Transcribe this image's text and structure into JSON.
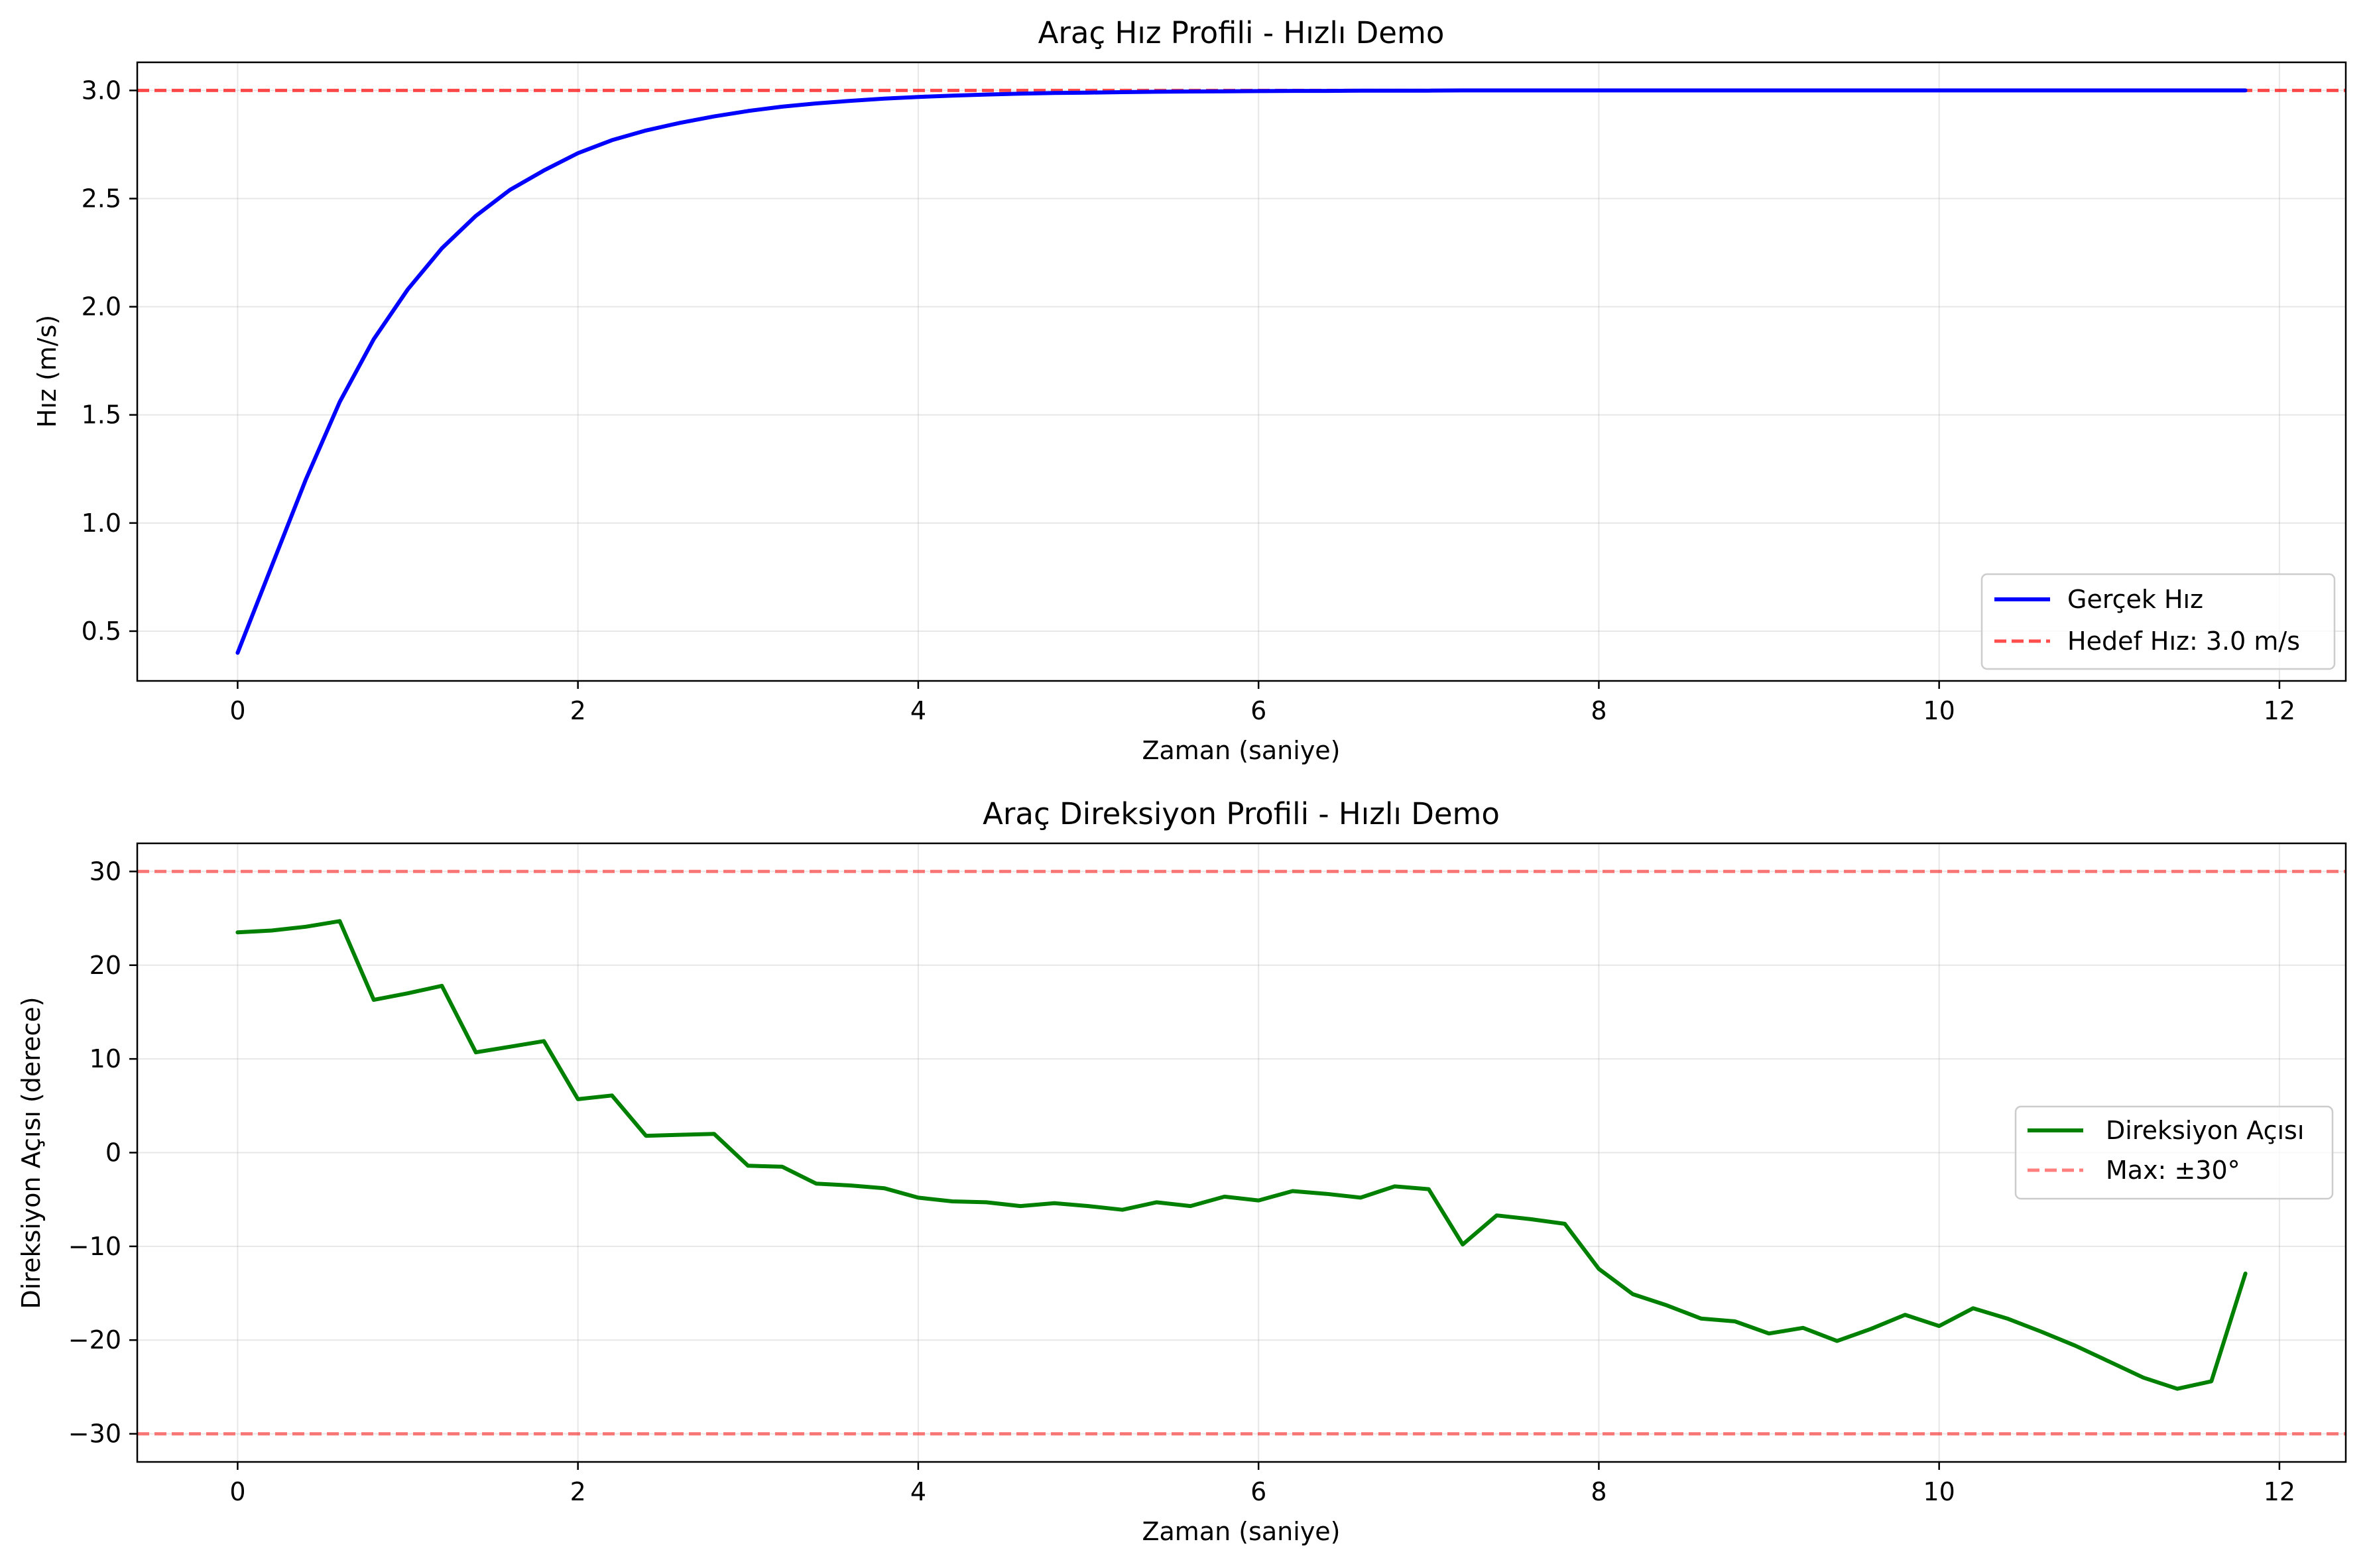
{
  "chart_data": [
    {
      "type": "line",
      "title": "Araç Hız Profili - Hızlı Demo",
      "xlabel": "Zaman (saniye)",
      "ylabel": "Hız (m/s)",
      "xlim": [
        -0.59,
        12.39
      ],
      "ylim": [
        0.27,
        3.13
      ],
      "x_ticks": [
        0,
        2,
        4,
        6,
        8,
        10,
        12
      ],
      "y_ticks": [
        0.5,
        1.0,
        1.5,
        2.0,
        2.5,
        3.0
      ],
      "x_tick_labels": [
        "0",
        "2",
        "4",
        "6",
        "8",
        "10",
        "12"
      ],
      "y_tick_labels": [
        "0.5",
        "1.0",
        "1.5",
        "2.0",
        "2.5",
        "3.0"
      ],
      "grid": true,
      "legend_position": "lower-right",
      "series": [
        {
          "name": "Gerçek Hız",
          "color": "#0000ff",
          "style": "solid",
          "x": [
            0,
            0.2,
            0.4,
            0.6,
            0.8,
            1.0,
            1.2,
            1.4,
            1.6,
            1.8,
            2.0,
            2.2,
            2.4,
            2.6,
            2.8,
            3.0,
            3.2,
            3.4,
            3.6,
            3.8,
            4.0,
            4.2,
            4.4,
            4.6,
            4.8,
            5.0,
            5.2,
            5.4,
            5.6,
            5.8,
            6.0,
            6.2,
            6.4,
            6.6,
            6.8,
            7.0,
            7.2,
            7.4,
            7.6,
            7.8,
            8.0,
            8.2,
            8.4,
            8.6,
            8.8,
            9.0,
            9.2,
            9.4,
            9.6,
            9.8,
            10.0,
            10.2,
            10.4,
            10.6,
            10.8,
            11.0,
            11.2,
            11.4,
            11.6,
            11.8
          ],
          "y": [
            0.4,
            0.8,
            1.2,
            1.56,
            1.85,
            2.08,
            2.27,
            2.42,
            2.54,
            2.63,
            2.71,
            2.77,
            2.815,
            2.85,
            2.88,
            2.905,
            2.925,
            2.94,
            2.952,
            2.962,
            2.97,
            2.976,
            2.981,
            2.985,
            2.988,
            2.99,
            2.992,
            2.994,
            2.995,
            2.996,
            2.997,
            2.998,
            2.998,
            2.999,
            2.999,
            2.999,
            3.0,
            3.0,
            3.0,
            3.0,
            3.0,
            3.0,
            3.0,
            3.0,
            3.0,
            3.0,
            3.0,
            3.0,
            3.0,
            3.0,
            3.0,
            3.0,
            3.0,
            3.0,
            3.0,
            3.0,
            3.0,
            3.0,
            3.0,
            3.0
          ]
        },
        {
          "name": "Hedef Hız: 3.0 m/s",
          "color": "#ff0000",
          "style": "dashed",
          "hline": 3.0
        }
      ]
    },
    {
      "type": "line",
      "title": "Araç Direksiyon Profili - Hızlı Demo",
      "xlabel": "Zaman (saniye)",
      "ylabel": "Direksiyon Açısı (derece)",
      "xlim": [
        -0.59,
        12.39
      ],
      "ylim": [
        -33,
        33
      ],
      "x_ticks": [
        0,
        2,
        4,
        6,
        8,
        10,
        12
      ],
      "y_ticks": [
        -30,
        -20,
        -10,
        0,
        10,
        20,
        30
      ],
      "x_tick_labels": [
        "0",
        "2",
        "4",
        "6",
        "8",
        "10",
        "12"
      ],
      "y_tick_labels": [
        "−30",
        "−20",
        "−10",
        "0",
        "10",
        "20",
        "30"
      ],
      "grid": true,
      "legend_position": "center-right",
      "series": [
        {
          "name": "Direksiyon Açısı",
          "color": "#008000",
          "style": "solid",
          "x": [
            0,
            0.2,
            0.4,
            0.6,
            0.8,
            1.0,
            1.2,
            1.4,
            1.6,
            1.8,
            2.0,
            2.2,
            2.4,
            2.6,
            2.8,
            3.0,
            3.2,
            3.4,
            3.6,
            3.8,
            4.0,
            4.2,
            4.4,
            4.6,
            4.8,
            5.0,
            5.2,
            5.4,
            5.6,
            5.8,
            6.0,
            6.2,
            6.4,
            6.6,
            6.8,
            7.0,
            7.2,
            7.4,
            7.6,
            7.8,
            8.0,
            8.2,
            8.4,
            8.6,
            8.8,
            9.0,
            9.2,
            9.4,
            9.6,
            9.8,
            10.0,
            10.2,
            10.4,
            10.6,
            10.8,
            11.0,
            11.2,
            11.4,
            11.6,
            11.8
          ],
          "y": [
            23.5,
            23.7,
            24.1,
            24.7,
            16.3,
            17.0,
            17.8,
            10.7,
            11.3,
            11.9,
            5.7,
            6.1,
            1.8,
            1.9,
            2.0,
            -1.4,
            -1.5,
            -3.3,
            -3.5,
            -3.8,
            -4.8,
            -5.2,
            -5.3,
            -5.7,
            -5.4,
            -5.7,
            -6.1,
            -5.3,
            -5.7,
            -4.7,
            -5.1,
            -4.1,
            -4.4,
            -4.8,
            -3.6,
            -3.9,
            -9.8,
            -6.7,
            -7.1,
            -7.6,
            -12.4,
            -15.1,
            -16.3,
            -17.7,
            -18.0,
            -19.3,
            -18.7,
            -20.1,
            -18.8,
            -17.3,
            -18.5,
            -16.6,
            -17.7,
            -19.1,
            -20.6,
            -22.3,
            -24.0,
            -25.2,
            -24.4,
            -12.9
          ]
        },
        {
          "name": "Max: ±30°",
          "color": "#ff0000",
          "style": "dashed",
          "hlines": [
            30,
            -30
          ]
        }
      ]
    }
  ]
}
